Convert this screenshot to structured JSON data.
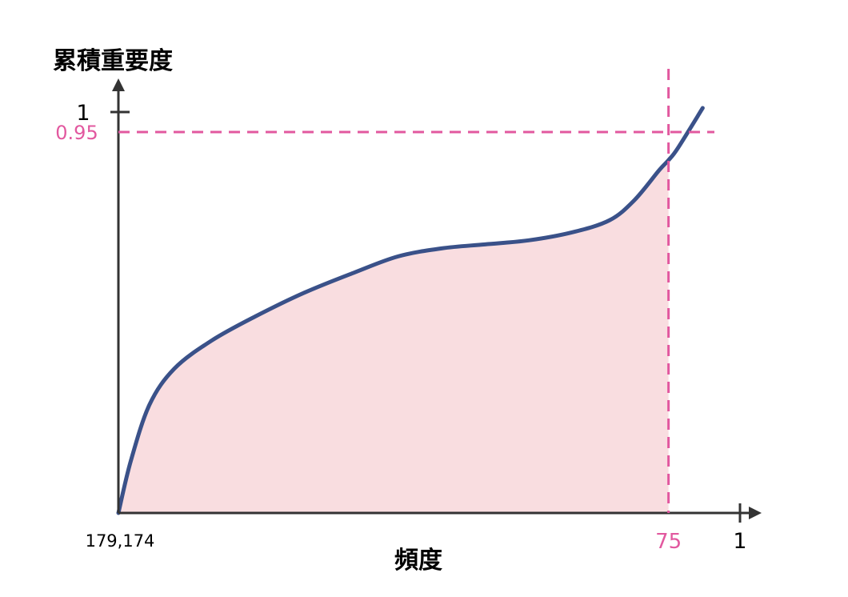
{
  "chart_data": {
    "type": "area",
    "ylabel": "累積重要度",
    "xlabel": "頻度",
    "x_start_label": "179,174",
    "x_end_label": "1",
    "y_top_label": "1",
    "threshold": {
      "y_value": 0.95,
      "y_label": "0.95",
      "x_label": "75"
    },
    "curve": {
      "x": [
        0,
        0.02,
        0.05,
        0.09,
        0.15,
        0.22,
        0.3,
        0.38,
        0.45,
        0.52,
        0.59,
        0.66,
        0.73,
        0.79,
        0.83,
        0.87,
        0.885,
        0.9,
        0.94
      ],
      "y": [
        0.0,
        0.13,
        0.27,
        0.36,
        0.43,
        0.49,
        0.55,
        0.6,
        0.64,
        0.66,
        0.67,
        0.68,
        0.7,
        0.73,
        0.78,
        0.855,
        0.88,
        0.91,
        1.01
      ]
    },
    "shaded_x_max": 0.885,
    "colors": {
      "curve": "#3a5189",
      "fill": "#f9dde0",
      "threshold": "#e2589f",
      "axis": "#333333",
      "text": "#111111"
    },
    "grid": false,
    "legend": "none"
  }
}
